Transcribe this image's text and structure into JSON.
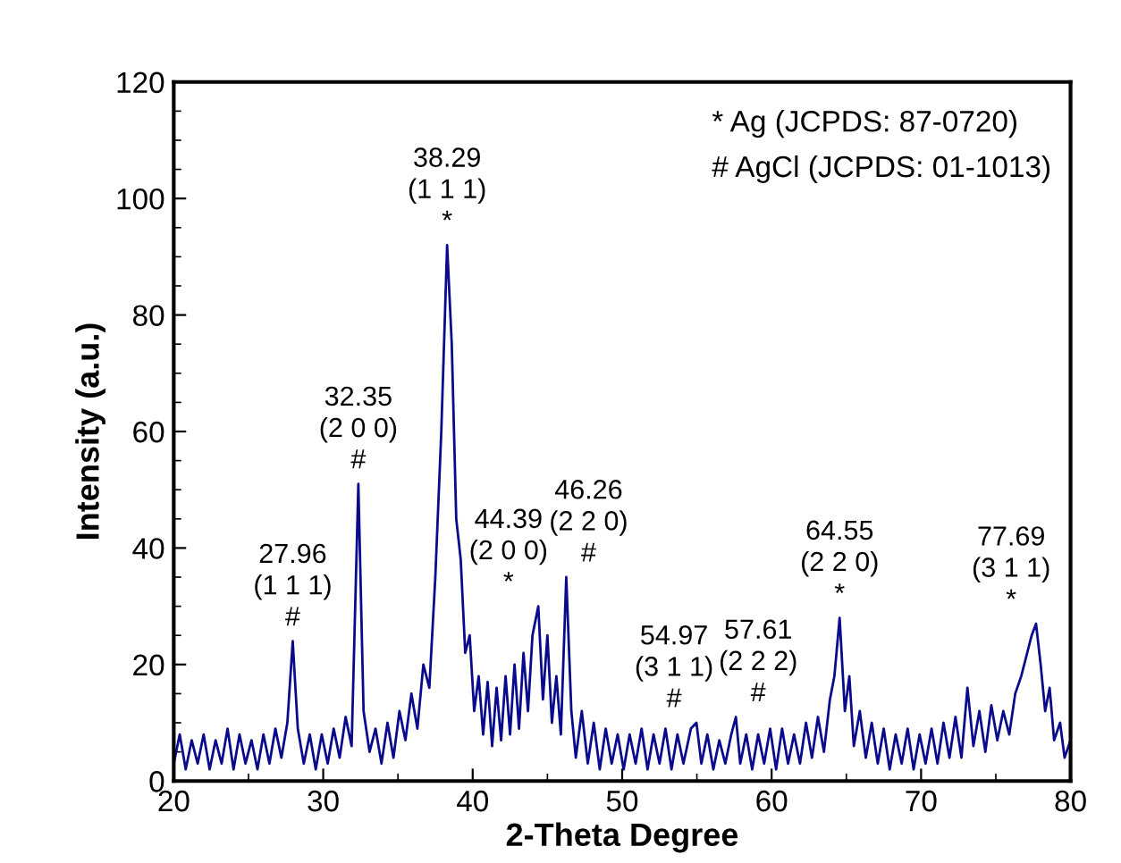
{
  "chart_data": {
    "type": "line",
    "xlabel": "2-Theta Degree",
    "ylabel": "Intensity (a.u.)",
    "xlim": [
      20,
      80
    ],
    "ylim": [
      0,
      120
    ],
    "xticks": [
      20,
      30,
      40,
      50,
      60,
      70,
      80
    ],
    "yticks": [
      0,
      20,
      40,
      60,
      80,
      100,
      120
    ],
    "grid": false,
    "legend": false,
    "marker": "none",
    "line_style": "solid",
    "series": [
      {
        "color": "#0a0a8c",
        "x": [
          20,
          20.4,
          20.8,
          21.2,
          21.6,
          22,
          22.4,
          22.8,
          23.2,
          23.6,
          24,
          24.4,
          24.8,
          25.2,
          25.6,
          26,
          26.4,
          26.8,
          27.2,
          27.6,
          27.96,
          28.3,
          28.7,
          29.1,
          29.5,
          29.9,
          30.3,
          30.7,
          31.1,
          31.5,
          31.9,
          32.35,
          32.7,
          33.1,
          33.5,
          33.9,
          34.3,
          34.7,
          35.1,
          35.5,
          35.9,
          36.3,
          36.7,
          37.1,
          37.5,
          37.9,
          38.29,
          38.6,
          38.9,
          39.2,
          39.5,
          39.8,
          40.1,
          40.4,
          40.7,
          41,
          41.3,
          41.6,
          41.9,
          42.2,
          42.5,
          42.8,
          43.1,
          43.4,
          43.7,
          44,
          44.39,
          44.7,
          45,
          45.3,
          45.6,
          45.9,
          46.26,
          46.6,
          46.9,
          47.3,
          47.7,
          48.1,
          48.5,
          48.9,
          49.3,
          49.7,
          50.1,
          50.5,
          50.9,
          51.3,
          51.7,
          52.1,
          52.5,
          52.9,
          53.3,
          53.7,
          54.1,
          54.6,
          54.97,
          55.3,
          55.7,
          56.1,
          56.5,
          56.9,
          57.3,
          57.61,
          57.9,
          58.3,
          58.7,
          59.1,
          59.5,
          59.9,
          60.3,
          60.7,
          61.1,
          61.5,
          61.9,
          62.3,
          62.7,
          63.1,
          63.5,
          63.9,
          64.2,
          64.55,
          64.9,
          65.2,
          65.5,
          65.9,
          66.3,
          66.7,
          67.1,
          67.5,
          67.9,
          68.3,
          68.7,
          69.1,
          69.5,
          69.9,
          70.3,
          70.7,
          71.1,
          71.5,
          71.9,
          72.3,
          72.7,
          73.1,
          73.5,
          73.9,
          74.3,
          74.7,
          75.1,
          75.5,
          75.9,
          76.3,
          76.7,
          77.1,
          77.4,
          77.69,
          78,
          78.3,
          78.6,
          78.9,
          79.3,
          79.6,
          80
        ],
        "values": [
          3,
          8,
          2,
          7,
          3,
          8,
          2,
          7,
          3,
          9,
          2,
          8,
          3,
          7,
          2,
          8,
          3,
          9,
          4,
          10,
          24,
          9,
          3,
          8,
          2,
          8,
          3,
          9,
          4,
          11,
          6,
          51,
          12,
          5,
          9,
          3,
          10,
          4,
          12,
          7,
          15,
          9,
          20,
          16,
          35,
          60,
          92,
          75,
          45,
          38,
          22,
          25,
          12,
          18,
          8,
          17,
          6,
          16,
          7,
          18,
          8,
          20,
          9,
          22,
          12,
          25,
          30,
          14,
          25,
          10,
          18,
          8,
          35,
          12,
          4,
          12,
          3,
          10,
          2,
          9,
          3,
          8,
          2,
          8,
          3,
          9,
          2,
          8,
          3,
          9,
          2,
          8,
          3,
          9,
          10,
          3,
          8,
          2,
          7,
          3,
          8,
          11,
          3,
          8,
          2,
          8,
          3,
          9,
          2,
          9,
          3,
          8,
          3,
          10,
          4,
          11,
          5,
          14,
          18,
          28,
          12,
          18,
          6,
          12,
          4,
          10,
          3,
          9,
          2,
          8,
          3,
          9,
          2,
          8,
          3,
          9,
          3,
          10,
          4,
          11,
          4,
          16,
          6,
          12,
          5,
          13,
          7,
          12,
          8,
          15,
          18,
          22,
          25,
          27,
          20,
          12,
          16,
          7,
          10,
          4,
          7
        ]
      }
    ],
    "annotations": [
      {
        "text": "27.96\n(1 1 1)\n#",
        "x": 27.96,
        "y": 24
      },
      {
        "text": "32.35\n(2 0 0)\n#",
        "x": 32.35,
        "y": 51
      },
      {
        "text": "38.29\n(1 1 1)\n*",
        "x": 38.29,
        "y": 92
      },
      {
        "text": "44.39\n(2 0 0)\n*",
        "x": 44.39,
        "y": 30
      },
      {
        "text": "46.26\n(2 2 0)\n#",
        "x": 46.26,
        "y": 35
      },
      {
        "text": "54.97\n(3 1 1)\n#",
        "x": 54.97,
        "y": 10
      },
      {
        "text": "57.61\n(2 2 2)\n#",
        "x": 57.61,
        "y": 11
      },
      {
        "text": "64.55\n(2 2 0)\n*",
        "x": 64.55,
        "y": 28
      },
      {
        "text": "77.69\n(3 1 1)\n*",
        "x": 77.69,
        "y": 27
      },
      "* Ag (JCPDS: 87-0720)",
      "# AgCl (JCPDS: 01-1013)"
    ]
  }
}
